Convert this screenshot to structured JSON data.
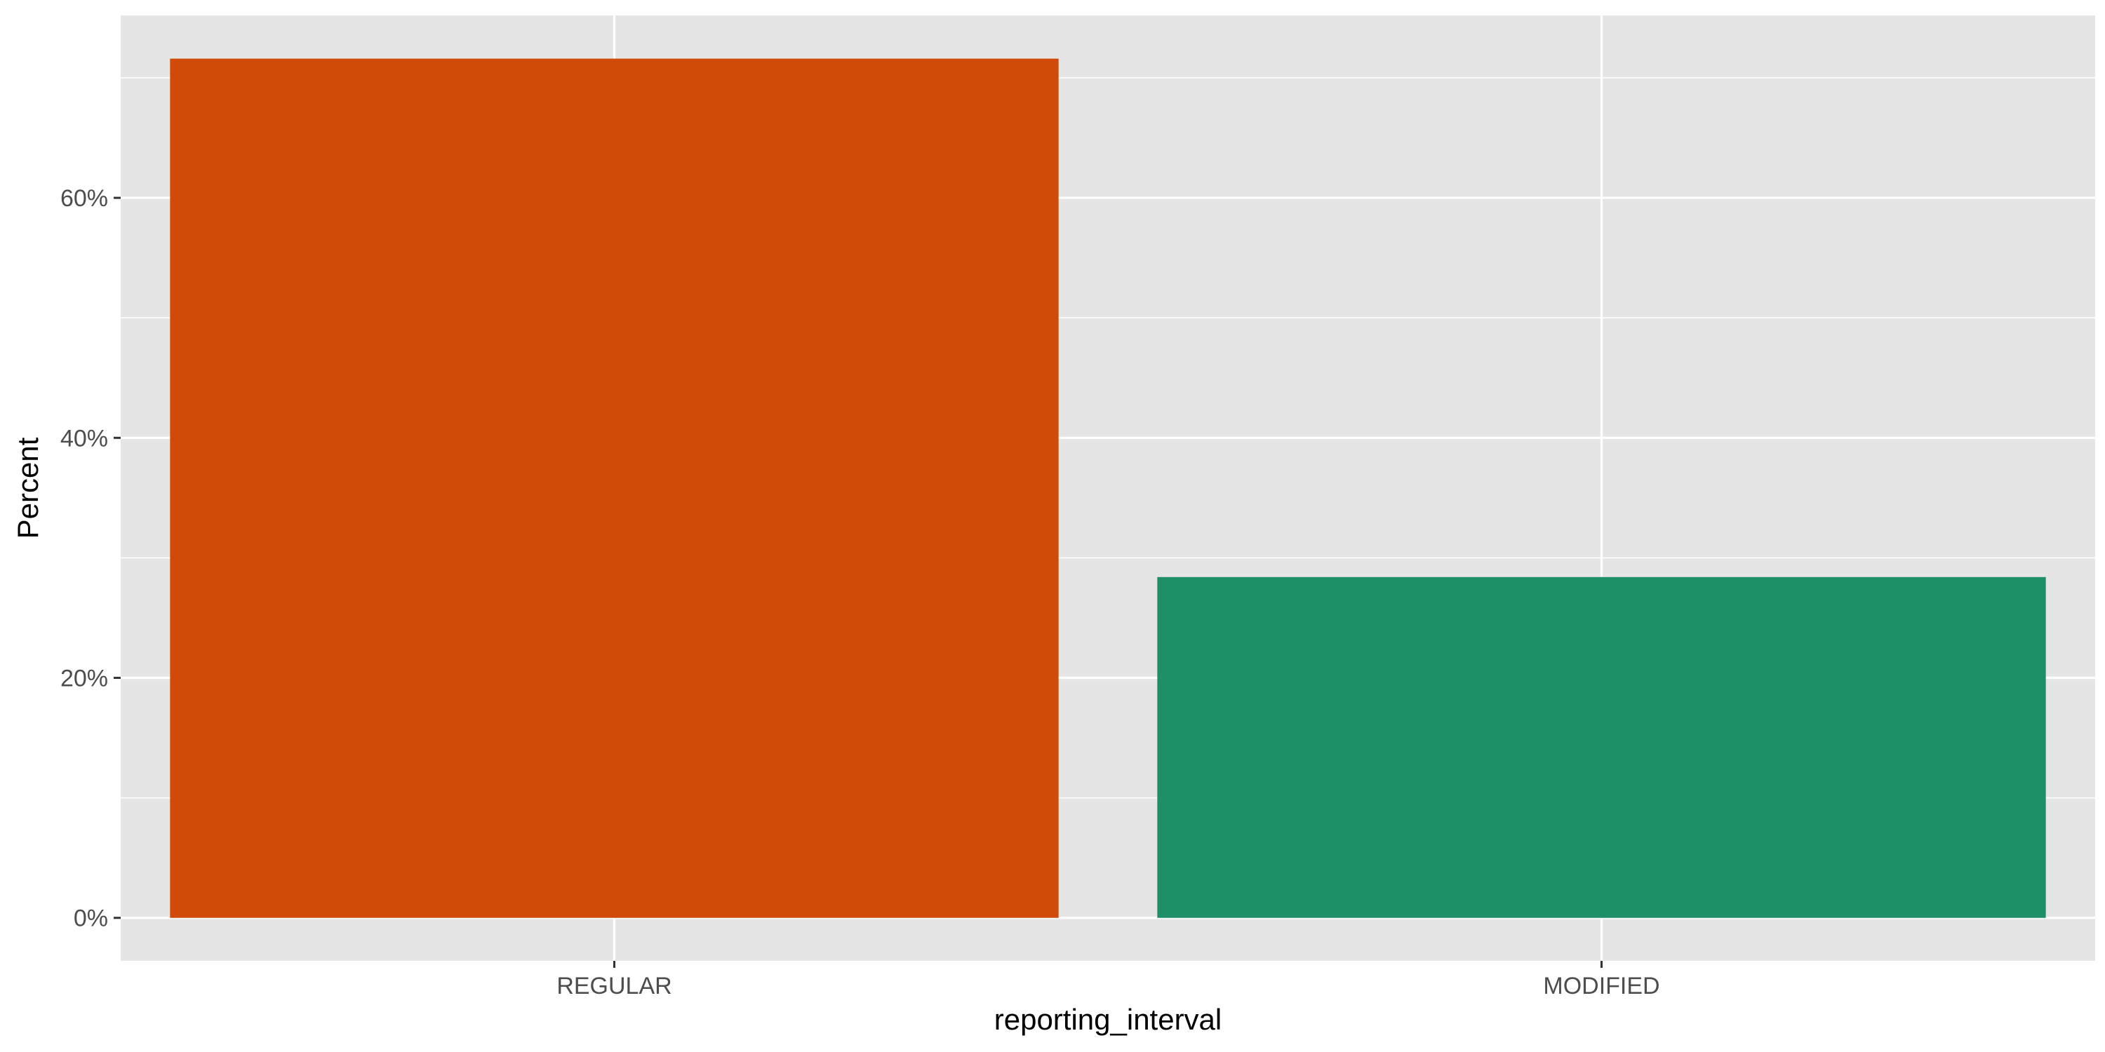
{
  "chart_data": {
    "type": "bar",
    "title": "",
    "xlabel": "reporting_interval",
    "ylabel": "Percent",
    "categories": [
      "REGULAR",
      "MODIFIED"
    ],
    "values": [
      71.6,
      28.4
    ],
    "bar_colors": [
      "#D04A08",
      "#1E8F66"
    ],
    "ylim": [
      -3.58,
      75.2
    ],
    "y_ticks": [
      0,
      20,
      40,
      60
    ],
    "y_tick_labels": [
      "0%",
      "20%",
      "40%",
      "60%"
    ],
    "y_minor_ticks": [
      10,
      30,
      50,
      70
    ],
    "grid": true,
    "legend": "none",
    "panel_background": "#E5E5E5",
    "gridline_color": "#FFFFFF",
    "tick_color": "#333333"
  }
}
